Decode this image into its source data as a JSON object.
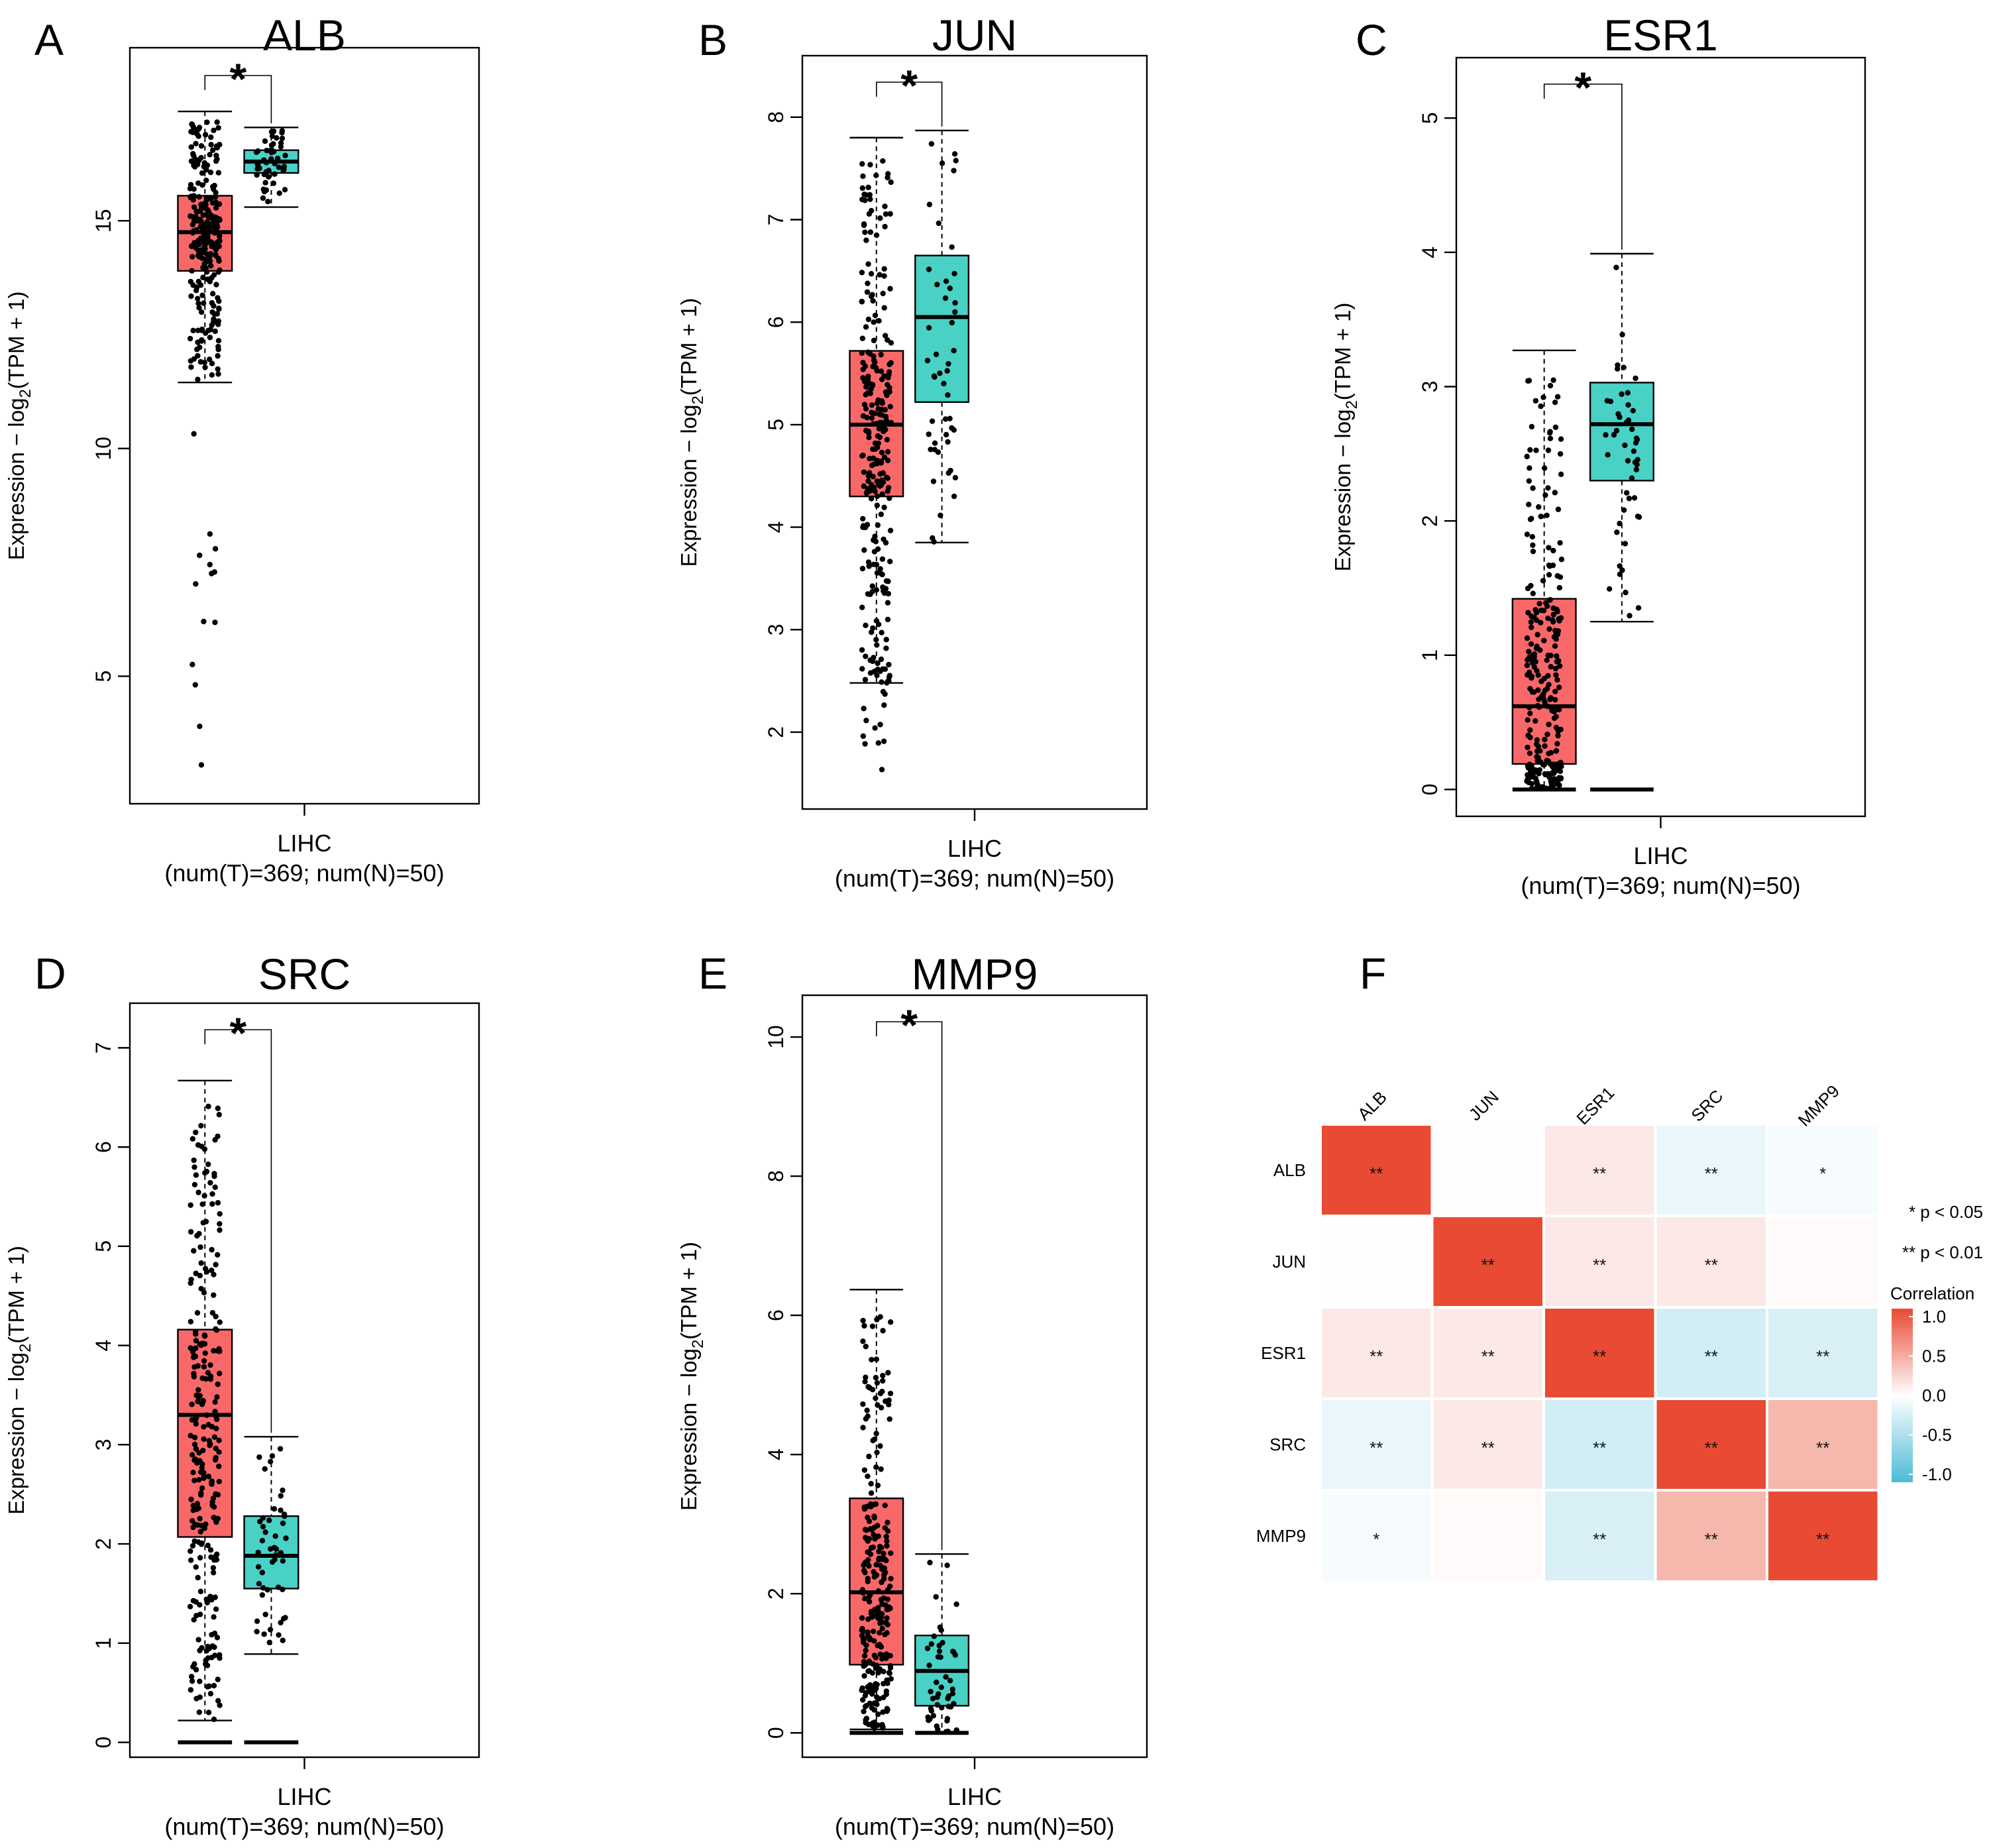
{
  "chart_data": [
    {
      "type": "box",
      "panel": "A",
      "title": "ALB",
      "ylabel": "Expression − log₂(TPM + 1)",
      "x_category": "LIHC",
      "x_note": "(num(T)=369; num(N)=50)",
      "ylim": [
        2.2,
        18.8
      ],
      "yticks": [
        5,
        10,
        15
      ],
      "yticklabels": [
        "5",
        "10",
        "15"
      ],
      "significance": "*",
      "groups": [
        {
          "name": "Tumor",
          "color": "#f96869",
          "whisker_low": 11.45,
          "q1": 13.9,
          "median": 14.75,
          "q3": 15.55,
          "whisker_high": 17.4,
          "zero_outliers": false
        },
        {
          "name": "Normal",
          "color": "#49d1c6",
          "whisker_low": 15.3,
          "q1": 16.05,
          "median": 16.3,
          "q3": 16.55,
          "whisker_high": 17.05,
          "zero_outliers": false
        }
      ]
    },
    {
      "type": "box",
      "panel": "B",
      "title": "JUN",
      "ylabel": "Expression − log₂(TPM + 1)",
      "x_category": "LIHC",
      "x_note": "(num(T)=369; num(N)=50)",
      "ylim": [
        1.25,
        8.6
      ],
      "yticks": [
        2,
        3,
        4,
        5,
        6,
        7,
        8
      ],
      "yticklabels": [
        "2",
        "3",
        "4",
        "5",
        "6",
        "7",
        "8"
      ],
      "significance": "*",
      "groups": [
        {
          "name": "Tumor",
          "color": "#f96869",
          "whisker_low": 2.48,
          "q1": 4.3,
          "median": 5.0,
          "q3": 5.72,
          "whisker_high": 7.8,
          "zero_outliers": false
        },
        {
          "name": "Normal",
          "color": "#49d1c6",
          "whisker_low": 3.85,
          "q1": 5.22,
          "median": 6.05,
          "q3": 6.65,
          "whisker_high": 7.87,
          "zero_outliers": false
        }
      ]
    },
    {
      "type": "box",
      "panel": "C",
      "title": "ESR1",
      "ylabel": "Expression − log₂(TPM + 1)",
      "x_category": "LIHC",
      "x_note": "(num(T)=369; num(N)=50)",
      "ylim": [
        -0.2,
        5.45
      ],
      "yticks": [
        0,
        1,
        2,
        3,
        4,
        5
      ],
      "yticklabels": [
        "0",
        "1",
        "2",
        "3",
        "4",
        "5"
      ],
      "significance": "*",
      "groups": [
        {
          "name": "Tumor",
          "color": "#f96869",
          "whisker_low": 0.0,
          "q1": 0.19,
          "median": 0.62,
          "q3": 1.42,
          "whisker_high": 3.27,
          "zero_outliers": true
        },
        {
          "name": "Normal",
          "color": "#49d1c6",
          "whisker_low": 1.25,
          "q1": 2.3,
          "median": 2.72,
          "q3": 3.03,
          "whisker_high": 3.99,
          "zero_outliers": true
        }
      ]
    },
    {
      "type": "box",
      "panel": "D",
      "title": "SRC",
      "ylabel": "Expression − log₂(TPM + 1)",
      "x_category": "LIHC",
      "x_note": "(num(T)=369; num(N)=50)",
      "ylim": [
        -0.15,
        7.45
      ],
      "yticks": [
        0,
        1,
        2,
        3,
        4,
        5,
        6,
        7
      ],
      "yticklabels": [
        "0",
        "1",
        "2",
        "3",
        "4",
        "5",
        "6",
        "7"
      ],
      "significance": "*",
      "groups": [
        {
          "name": "Tumor",
          "color": "#f96869",
          "whisker_low": 0.22,
          "q1": 2.07,
          "median": 3.3,
          "q3": 4.16,
          "whisker_high": 6.67,
          "zero_outliers": true
        },
        {
          "name": "Normal",
          "color": "#49d1c6",
          "whisker_low": 0.89,
          "q1": 1.55,
          "median": 1.88,
          "q3": 2.28,
          "whisker_high": 3.08,
          "zero_outliers": true
        }
      ]
    },
    {
      "type": "box",
      "panel": "E",
      "title": "MMP9",
      "ylabel": "Expression − log₂(TPM + 1)",
      "x_category": "LIHC",
      "x_note": "(num(T)=369; num(N)=50)",
      "ylim": [
        -0.35,
        10.6
      ],
      "yticks": [
        0,
        2,
        4,
        6,
        8,
        10
      ],
      "yticklabels": [
        "0",
        "2",
        "4",
        "6",
        "8",
        "10"
      ],
      "significance": "*",
      "groups": [
        {
          "name": "Tumor",
          "color": "#f96869",
          "whisker_low": 0.05,
          "q1": 0.98,
          "median": 2.02,
          "q3": 3.37,
          "whisker_high": 6.37,
          "zero_outliers": true
        },
        {
          "name": "Normal",
          "color": "#49d1c6",
          "whisker_low": 0.0,
          "q1": 0.39,
          "median": 0.89,
          "q3": 1.4,
          "whisker_high": 2.57,
          "zero_outliers": true
        }
      ]
    },
    {
      "type": "heatmap",
      "panel": "F",
      "genes": [
        "ALB",
        "JUN",
        "ESR1",
        "SRC",
        "MMP9"
      ],
      "matrix": [
        [
          1.0,
          0.01,
          0.12,
          -0.12,
          -0.05
        ],
        [
          0.01,
          1.0,
          0.12,
          0.12,
          0.03
        ],
        [
          0.12,
          0.12,
          1.0,
          -0.25,
          -0.22
        ],
        [
          -0.12,
          0.12,
          -0.25,
          1.0,
          0.4
        ],
        [
          -0.05,
          0.03,
          -0.22,
          0.4,
          1.0
        ]
      ],
      "significance": [
        [
          "**",
          "",
          "**",
          "**",
          "*"
        ],
        [
          "",
          "**",
          "**",
          "**",
          ""
        ],
        [
          "**",
          "**",
          "**",
          "**",
          "**"
        ],
        [
          "**",
          "**",
          "**",
          "**",
          "**"
        ],
        [
          "*",
          "",
          "**",
          "**",
          "**"
        ]
      ],
      "sig_legend": [
        "* p < 0.05",
        "** p < 0.01"
      ],
      "colorbar_title": "Correlation",
      "colorbar_ticks": [
        1.0,
        0.5,
        0.0,
        -0.5,
        -1.0
      ],
      "colorbar_ticklabels": [
        "1.0",
        "0.5",
        "0.0",
        "-0.5",
        "-1.0"
      ],
      "colors": {
        "high": "#e84a33",
        "mid": "#ffffff",
        "low": "#4cbbd5"
      }
    }
  ]
}
